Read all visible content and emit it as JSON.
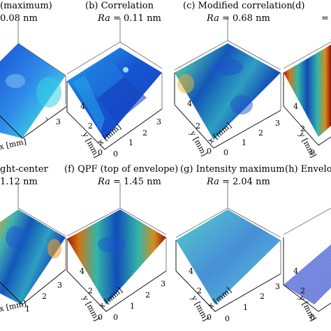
{
  "panels": [
    {
      "title": "(maximum)",
      "ra_label": "",
      "ra_value": "0.08 nm",
      "y_label": "",
      "x_label": "x [mm]",
      "y_ticks": [],
      "x_ticks": [
        "3"
      ],
      "colormap": "blue_smooth"
    },
    {
      "title": "(b) Correlation",
      "ra_label": "Ra",
      "ra_value": "= 0.11 nm",
      "y_label": "y [mm]",
      "x_label": "x [mm]",
      "y_ticks": [
        "4",
        "2",
        "0"
      ],
      "x_ticks": [
        "3",
        "2",
        "1",
        "0"
      ],
      "colormap": "terraced"
    },
    {
      "title": "(c) Modified correlation",
      "ra_label": "Ra",
      "ra_value": "= 0.68 nm",
      "y_label": "y [mm]",
      "x_label": "x [mm]",
      "y_ticks": [
        "4",
        "2",
        "0"
      ],
      "x_ticks": [
        "3",
        "2",
        "1",
        "0"
      ],
      "colormap": "noisy_mixed"
    },
    {
      "title": "(d)",
      "ra_label": "",
      "ra_value": "=",
      "y_label": "y [mm]",
      "x_label": "",
      "y_ticks": [
        "4",
        "2",
        "0"
      ],
      "x_ticks": [],
      "colormap": "noisy_red"
    },
    {
      "title": "ght-center",
      "ra_label": "",
      "ra_value": "1.12 nm",
      "y_label": "",
      "x_label": "x [mm]",
      "y_ticks": [],
      "x_ticks": [
        "3",
        "2",
        "1"
      ],
      "colormap": "noisy_mixed"
    },
    {
      "title": "(f) QPF (top of envelope)",
      "ra_label": "Ra",
      "ra_value": "= 1.45 nm",
      "y_label": "y [mm]",
      "x_label": "x [mm]",
      "y_ticks": [
        "4",
        "2",
        "0"
      ],
      "x_ticks": [
        "3",
        "2",
        "1",
        "0"
      ],
      "colormap": "noisy_red"
    },
    {
      "title": "(g) Intensity maximum",
      "ra_label": "Ra",
      "ra_value": "= 2.04 nm",
      "y_label": "y [mm]",
      "x_label": "x [mm]",
      "y_ticks": [
        "4",
        "2",
        "0"
      ],
      "x_ticks": [
        "3",
        "2",
        "1",
        "0"
      ],
      "colormap": "noisy_cyan"
    },
    {
      "title": "(h) Envelo",
      "ra_label": "",
      "ra_value": "",
      "y_label": "y [mm]",
      "x_label": "",
      "y_ticks": [
        "4",
        "2",
        "0"
      ],
      "x_ticks": [],
      "colormap": "flat_blue"
    }
  ]
}
